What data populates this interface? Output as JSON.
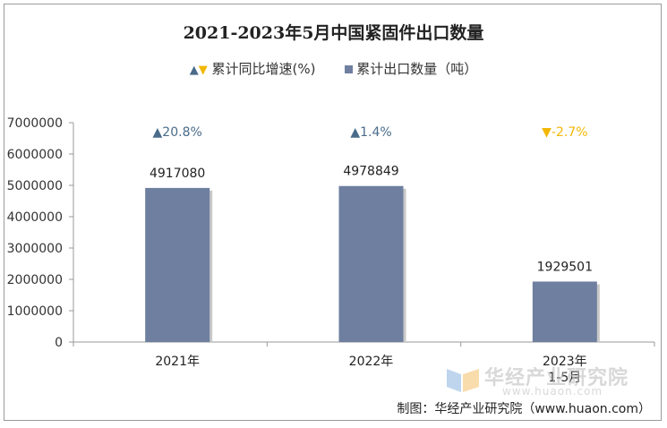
{
  "title": "2021-2023年5月中国紧固件出口数量",
  "legend": {
    "growth_label": "累计同比增速(%)",
    "volume_label": "累计出口数量（吨）"
  },
  "colors": {
    "bar": "#6e7fa0",
    "up": "#4a6b8a",
    "down": "#f2b705",
    "axis": "#999999"
  },
  "footer": "制图：华经产业研究院（www.huaon.com）",
  "watermark": {
    "name": "华经产业研究院",
    "url": "www.huaon.com"
  },
  "chart_data": {
    "type": "bar",
    "categories": [
      "2021年",
      "2022年",
      "2023年1-5月"
    ],
    "category_lines": [
      [
        "2021年"
      ],
      [
        "2022年"
      ],
      [
        "2023年",
        "1-5月"
      ]
    ],
    "values": [
      4917080,
      4978849,
      1929501
    ],
    "value_labels": [
      "4917080",
      "4978849",
      "1929501"
    ],
    "growth": [
      {
        "direction": "up",
        "label": "20.8%"
      },
      {
        "direction": "up",
        "label": "1.4%"
      },
      {
        "direction": "down",
        "label": "-2.7%"
      }
    ],
    "ylim": [
      0,
      7000000
    ],
    "yticks": [
      0,
      1000000,
      2000000,
      3000000,
      4000000,
      5000000,
      6000000,
      7000000
    ],
    "ytick_labels": [
      "0",
      "1000000",
      "2000000",
      "3000000",
      "4000000",
      "5000000",
      "6000000",
      "7000000"
    ]
  }
}
